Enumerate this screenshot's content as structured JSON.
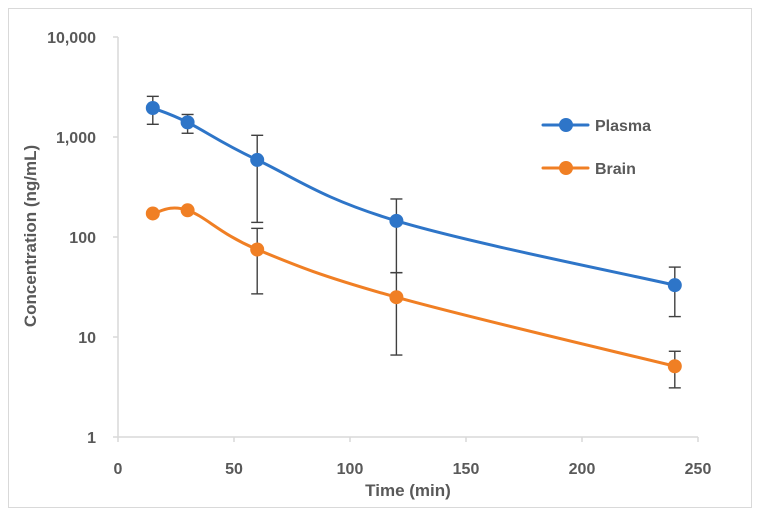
{
  "chart_data": {
    "type": "line",
    "title": "",
    "xlabel": "Time (min)",
    "ylabel": "Concentration (ng/mL)",
    "xlim": [
      0,
      250
    ],
    "ylim": [
      1,
      10000
    ],
    "yscale": "log",
    "x_ticks": [
      0,
      50,
      100,
      150,
      200,
      250
    ],
    "x_tick_labels": [
      "0",
      "50",
      "100",
      "150",
      "200",
      "250"
    ],
    "y_ticks": [
      1,
      10,
      100,
      1000,
      10000
    ],
    "y_tick_labels": [
      "1",
      "10",
      "100",
      "1,000",
      "10,000"
    ],
    "grid": false,
    "legend_position": "right",
    "series": [
      {
        "name": "Plasma",
        "color": "#2e75c8",
        "x": [
          15,
          30,
          60,
          120,
          240
        ],
        "values": [
          1950,
          1400,
          590,
          145,
          33
        ],
        "error_low": [
          1340,
          1090,
          140,
          44,
          16
        ],
        "error_high": [
          2550,
          1680,
          1040,
          240,
          50
        ]
      },
      {
        "name": "Brain",
        "color": "#f07f24",
        "x": [
          15,
          30,
          60,
          120,
          240
        ],
        "values": [
          172,
          185,
          75,
          25,
          5.1
        ],
        "error_low": [
          172,
          185,
          27,
          6.6,
          3.1
        ],
        "error_high": [
          172,
          185,
          122,
          44,
          7.2
        ]
      }
    ],
    "error_bar_color": "#404040"
  }
}
